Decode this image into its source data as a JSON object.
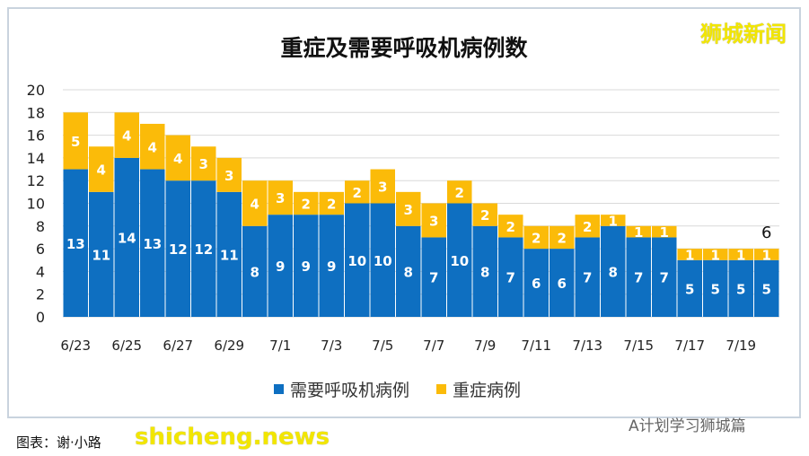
{
  "chart_data": {
    "type": "bar",
    "stacked": true,
    "title": "重症及需要呼吸机病例数",
    "categories": [
      "6/23",
      "6/24",
      "6/25",
      "6/26",
      "6/27",
      "6/28",
      "6/29",
      "6/30",
      "7/1",
      "7/2",
      "7/3",
      "7/4",
      "7/5",
      "7/6",
      "7/7",
      "7/8",
      "7/9",
      "7/10",
      "7/11",
      "7/12",
      "7/13",
      "7/14",
      "7/15",
      "7/16",
      "7/17",
      "7/18",
      "7/19",
      "7/20"
    ],
    "tick_labels": [
      "6/23",
      "6/25",
      "6/27",
      "6/29",
      "7/1",
      "7/3",
      "7/5",
      "7/7",
      "7/9",
      "7/11",
      "7/13",
      "7/15",
      "7/17",
      "7/19"
    ],
    "series": [
      {
        "name": "需要呼吸机病例",
        "color": "#0e6fc1",
        "values": [
          13,
          11,
          14,
          13,
          12,
          12,
          11,
          8,
          9,
          9,
          9,
          10,
          10,
          8,
          7,
          10,
          8,
          7,
          6,
          6,
          7,
          8,
          7,
          7,
          5,
          5,
          5,
          5
        ]
      },
      {
        "name": "重症病例",
        "color": "#fbbb09",
        "values": [
          5,
          4,
          4,
          4,
          4,
          3,
          3,
          4,
          3,
          2,
          2,
          2,
          3,
          3,
          3,
          2,
          2,
          2,
          2,
          2,
          2,
          1,
          1,
          1,
          1,
          1,
          1,
          1
        ]
      }
    ],
    "ylim": [
      0,
      20
    ],
    "yticks": [
      0,
      2,
      4,
      6,
      8,
      10,
      12,
      14,
      16,
      18,
      20
    ],
    "grid": true,
    "legend": "bottom",
    "annotations": [
      {
        "category": "7/20",
        "text": "6"
      }
    ]
  },
  "watermarks": {
    "site_cn": "狮城新闻",
    "site": "shicheng.news",
    "account": "A计划学习狮城篇"
  },
  "caption": "图表：谢·小路"
}
